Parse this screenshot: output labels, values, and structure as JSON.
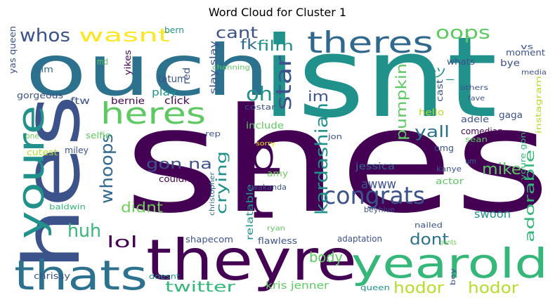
{
  "chart_data": {
    "type": "wordcloud",
    "title": "Word Cloud for Cluster 1",
    "palette": "viridis",
    "words": [
      {
        "text": "shes",
        "color": "#440154"
      },
      {
        "text": "isnt",
        "color": "#21918c"
      },
      {
        "text": "ouch",
        "color": "#2c728e"
      },
      {
        "text": "theyre",
        "color": "#440154"
      },
      {
        "text": "yearold",
        "color": "#35b779"
      },
      {
        "text": "hes",
        "color": "#3b528b"
      },
      {
        "text": "thats",
        "color": "#2c728e"
      },
      {
        "text": "youre",
        "color": "#21918c"
      },
      {
        "text": "theres",
        "color": "#31688e"
      },
      {
        "text": "heres",
        "color": "#5ec962"
      },
      {
        "text": "rip",
        "color": "#440154"
      },
      {
        "text": "congrats",
        "color": "#3b528b"
      },
      {
        "text": "whos",
        "color": "#3b528b"
      },
      {
        "text": "wasnt",
        "color": "#fde725"
      },
      {
        "text": "oops",
        "color": "#5ec962"
      },
      {
        "text": "kardashian",
        "color": "#21918c"
      },
      {
        "text": "star",
        "color": "#3b528b"
      },
      {
        "text": "oh",
        "color": "#21918c"
      },
      {
        "text": "hodor",
        "color": "#b5de2b"
      },
      {
        "text": "hodor",
        "color": "#b5de2b"
      },
      {
        "text": "whoops",
        "color": "#31688e"
      },
      {
        "text": "huh",
        "color": "#35b779"
      },
      {
        "text": "gon na",
        "color": "#3b528b"
      },
      {
        "text": "cant",
        "color": "#3b528b"
      },
      {
        "text": "pumpkin",
        "color": "#5ec962"
      },
      {
        "text": "crying",
        "color": "#21918c"
      },
      {
        "text": "lol",
        "color": "#440154"
      },
      {
        "text": "didnt",
        "color": "#6ece58"
      },
      {
        "text": "adorable",
        "color": "#35b779"
      },
      {
        "text": "mike",
        "color": "#5ec962"
      },
      {
        "text": "yall",
        "color": "#2c728e"
      },
      {
        "text": "dont",
        "color": "#2c728e"
      },
      {
        "text": "body",
        "color": "#5ec962"
      },
      {
        "text": "twitter",
        "color": "#35b779"
      },
      {
        "text": "awww",
        "color": "#3b528b"
      },
      {
        "text": "fk",
        "color": "#31688e"
      },
      {
        "text": "film",
        "color": "#21918c"
      },
      {
        "text": "im",
        "color": "#3b528b"
      },
      {
        "text": "_ツ_",
        "color": "#21918c"
      },
      {
        "text": "swoon",
        "color": "#21918c"
      },
      {
        "text": "kris jenner",
        "color": "#5ec962"
      },
      {
        "text": "relatable",
        "color": "#21918c"
      },
      {
        "text": "tatum",
        "color": "#3b528b"
      },
      {
        "text": "play",
        "color": "#21918c"
      },
      {
        "text": "bernie",
        "color": "#440154"
      },
      {
        "text": "ftw",
        "color": "#3b528b"
      },
      {
        "text": "click",
        "color": "#440154"
      },
      {
        "text": "red",
        "color": "#3b528b"
      },
      {
        "text": "slay slay",
        "color": "#3b528b"
      },
      {
        "text": "yikes",
        "color": "#440154"
      },
      {
        "text": "md",
        "color": "#5ec962"
      },
      {
        "text": "kim",
        "color": "#31688e"
      },
      {
        "text": "gorgeous",
        "color": "#3b528b"
      },
      {
        "text": "yas queen",
        "color": "#3b528b"
      },
      {
        "text": "bern",
        "color": "#21918c"
      },
      {
        "text": "channing",
        "color": "#5ec962"
      },
      {
        "text": "costar",
        "color": "#3b528b"
      },
      {
        "text": "include",
        "color": "#5ec962"
      },
      {
        "text": "selfie",
        "color": "#5ec962"
      },
      {
        "text": "miley",
        "color": "#3b528b"
      },
      {
        "text": "rep",
        "color": "#3b528b"
      },
      {
        "text": "one",
        "color": "#6ece58"
      },
      {
        "text": "cutest",
        "color": "#b5de2b"
      },
      {
        "text": "couldnt",
        "color": "#440154"
      },
      {
        "text": "sorry",
        "color": "#fde725"
      },
      {
        "text": "amy",
        "color": "#6ece58"
      },
      {
        "text": "wakanda",
        "color": "#3b528b"
      },
      {
        "text": "christopher",
        "color": "#31688e"
      },
      {
        "text": "baldwin",
        "color": "#35b779"
      },
      {
        "text": "shapecom",
        "color": "#3b528b"
      },
      {
        "text": "ryan",
        "color": "#5ec962"
      },
      {
        "text": "flawless",
        "color": "#3b528b"
      },
      {
        "text": "chrissy",
        "color": "#3b528b"
      },
      {
        "text": "doesnt",
        "color": "#21918c"
      },
      {
        "text": "queen",
        "color": "#21918c"
      },
      {
        "text": "adaptation",
        "color": "#3b528b"
      },
      {
        "text": "nailed",
        "color": "#3b528b"
      },
      {
        "text": "pants",
        "color": "#6ece58"
      },
      {
        "text": "bey",
        "color": "#3b528b"
      },
      {
        "text": "beyhive",
        "color": "#3b528b"
      },
      {
        "text": "jessica",
        "color": "#31688e"
      },
      {
        "text": "actor",
        "color": "#5ec962"
      },
      {
        "text": "kanye",
        "color": "#3b528b"
      },
      {
        "text": "um",
        "color": "#31688e"
      },
      {
        "text": "sean",
        "color": "#5ec962"
      },
      {
        "text": "omg",
        "color": "#3b528b"
      },
      {
        "text": "jon",
        "color": "#3b528b"
      },
      {
        "text": "comedian",
        "color": "#440154"
      },
      {
        "text": "adele",
        "color": "#3b528b"
      },
      {
        "text": "hello",
        "color": "#b5de2b"
      },
      {
        "text": "gaga",
        "color": "#3b528b"
      },
      {
        "text": "cast",
        "color": "#3b528b"
      },
      {
        "text": "fave",
        "color": "#3b528b"
      },
      {
        "text": "others",
        "color": "#3b528b"
      },
      {
        "text": "instagram",
        "color": "#b5de2b"
      },
      {
        "text": "youre gon",
        "color": "#35b779"
      },
      {
        "text": "media",
        "color": "#3b528b"
      },
      {
        "text": "moment",
        "color": "#3b528b"
      },
      {
        "text": "vs",
        "color": "#3b528b"
      },
      {
        "text": "whats",
        "color": "#3b528b"
      },
      {
        "text": "bye",
        "color": "#3b528b"
      }
    ]
  }
}
